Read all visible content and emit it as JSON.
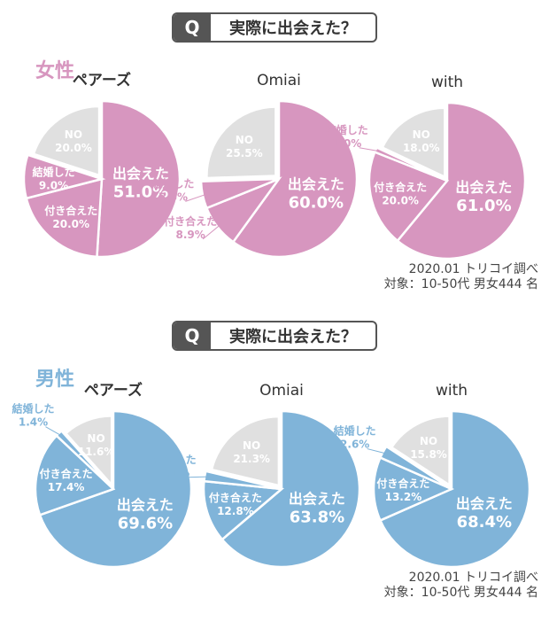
{
  "colors": {
    "female": "#d796bf",
    "male": "#80b4d9",
    "no": "#e0e0e0",
    "title_box": "#555555"
  },
  "sections": [
    {
      "question_badge": "Q",
      "question": "実際に出会えた？",
      "gender": "女性",
      "source_line1": "2020.01 トリコイ調べ",
      "source_line2": "対象：10-50代 男女444 名"
    },
    {
      "question_badge": "Q",
      "question": "実際に出会えた？",
      "gender": "男性",
      "source_line1": "2020.01 トリコイ調べ",
      "source_line2": "対象：10-50代 男女444 名"
    }
  ],
  "chart_data": [
    {
      "type": "pie",
      "title": "ペアーズ",
      "group": "女性",
      "labels": [
        "出会えた",
        "付き合えた",
        "結婚した",
        "NO"
      ],
      "values": [
        51.0,
        20.0,
        9.0,
        20.0
      ],
      "value_labels": [
        "51.0%",
        "20.0%",
        "9.0%",
        "20.0%"
      ]
    },
    {
      "type": "pie",
      "title": "Omiai",
      "group": "女性",
      "labels": [
        "出会えた",
        "付き合えた",
        "結婚した",
        "NO"
      ],
      "values": [
        60.0,
        8.9,
        5.6,
        25.5
      ],
      "value_labels": [
        "60.0%",
        "8.9%",
        "5.6%",
        "25.5%"
      ]
    },
    {
      "type": "pie",
      "title": "with",
      "group": "女性",
      "labels": [
        "出会えた",
        "付き合えた",
        "結婚した",
        "NO"
      ],
      "values": [
        61.0,
        20.0,
        1.0,
        18.0
      ],
      "value_labels": [
        "61.0%",
        "20.0%",
        "1.0%",
        "18.0%"
      ]
    },
    {
      "type": "pie",
      "title": "ペアーズ",
      "group": "男性",
      "labels": [
        "出会えた",
        "付き合えた",
        "結婚した",
        "NO"
      ],
      "values": [
        69.6,
        17.4,
        1.4,
        11.6
      ],
      "value_labels": [
        "69.6%",
        "17.4%",
        "1.4%",
        "11.6%"
      ]
    },
    {
      "type": "pie",
      "title": "Omiai",
      "group": "男性",
      "labels": [
        "出会えた",
        "付き合えた",
        "結婚した",
        "NO"
      ],
      "values": [
        63.8,
        12.8,
        2.1,
        21.3
      ],
      "value_labels": [
        "63.8%",
        "12.8%",
        "2.1%",
        "21.3%"
      ]
    },
    {
      "type": "pie",
      "title": "with",
      "group": "男性",
      "labels": [
        "出会えた",
        "付き合えた",
        "結婚した",
        "NO"
      ],
      "values": [
        68.4,
        13.2,
        2.6,
        15.8
      ],
      "value_labels": [
        "68.4%",
        "13.2%",
        "2.6%",
        "15.8%"
      ]
    }
  ]
}
